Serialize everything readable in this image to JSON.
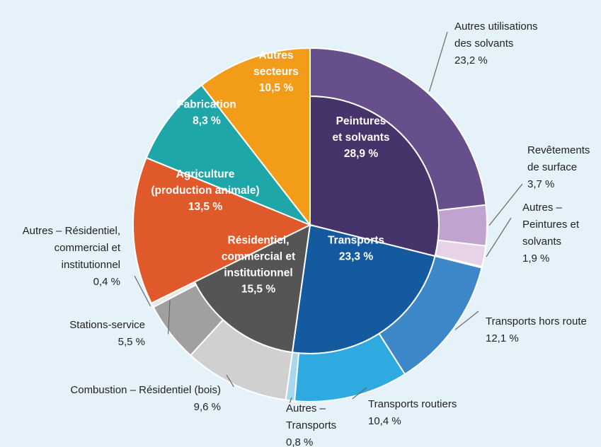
{
  "chart_data": {
    "type": "sunburst",
    "sectors": [
      {
        "name": [
          "Peintures",
          "et solvants"
        ],
        "value": 28.9,
        "value_label": "28,9 %",
        "color": "#46336a",
        "children": [
          {
            "name": [
              "Autres utilisations",
              "des solvants"
            ],
            "value": 23.2,
            "value_label": "23,2 %",
            "color": "#674f8c"
          },
          {
            "name": [
              "Revêtements",
              "de surface"
            ],
            "value": 3.7,
            "value_label": "3,7 %",
            "color": "#c0a3cf"
          },
          {
            "name": [
              "Autres –",
              "Peintures et",
              "solvants"
            ],
            "value": 1.9,
            "value_label": "1,9 %",
            "color": "#e6d3e8"
          }
        ]
      },
      {
        "name": [
          "Transports"
        ],
        "value": 23.3,
        "value_label": "23,3 %",
        "color": "#135a9e",
        "children": [
          {
            "name": [
              "Transports hors route"
            ],
            "value": 12.1,
            "value_label": "12,1 %",
            "color": "#3b87c8"
          },
          {
            "name": [
              "Transports routiers"
            ],
            "value": 10.4,
            "value_label": "10,4 %",
            "color": "#2eaae1"
          },
          {
            "name": [
              "Autres –",
              "Transports"
            ],
            "value": 0.8,
            "value_label": "0,8 %",
            "color": "#a8d8ef"
          }
        ]
      },
      {
        "name": [
          "Résidentiel,",
          "commercial et",
          "institutionnel"
        ],
        "value": 15.5,
        "value_label": "15,5 %",
        "color": "#555555",
        "children": [
          {
            "name": [
              "Combustion – Résidentiel (bois)"
            ],
            "value": 9.6,
            "value_label": "9,6 %",
            "color": "#d0d0d0"
          },
          {
            "name": [
              "Stations-service"
            ],
            "value": 5.5,
            "value_label": "5,5 %",
            "color": "#a0a0a0"
          },
          {
            "name": [
              "Autres – Résidentiel,",
              "commercial et",
              "institutionnel"
            ],
            "value": 0.4,
            "value_label": "0,4 %",
            "color": "#e8e8e8"
          }
        ]
      },
      {
        "name": [
          "Agriculture",
          "(production animale)"
        ],
        "value": 13.5,
        "value_label": "13,5 %",
        "color": "#e0592a"
      },
      {
        "name": [
          "Fabrication"
        ],
        "value": 8.3,
        "value_label": "8,3 %",
        "color": "#1fa6a8"
      },
      {
        "name": [
          "Autres",
          "secteurs"
        ],
        "value": 10.5,
        "value_label": "10,5 %",
        "color": "#f39c1a"
      }
    ]
  }
}
